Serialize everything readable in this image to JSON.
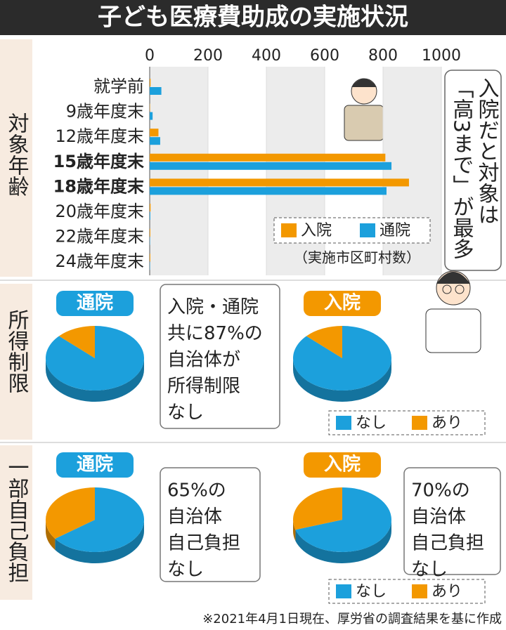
{
  "title": "子ども医療費助成の実施状況",
  "sections": [
    "対象年齢",
    "所得制限",
    "一部自己負担"
  ],
  "chart_data": [
    {
      "type": "hbar",
      "categories": [
        "就学前",
        "9歳年度末",
        "12歳年度末",
        "15歳年度末",
        "18歳年度末",
        "20歳年度末",
        "22歳年度末",
        "24歳年度末"
      ],
      "series": [
        {
          "name": "入院",
          "color": "#f39800",
          "values": [
            3,
            1,
            30,
            808,
            889,
            3,
            2,
            2
          ]
        },
        {
          "name": "通院",
          "color": "#1ca0dc",
          "values": [
            40,
            10,
            36,
            829,
            812,
            2,
            1,
            1
          ]
        }
      ],
      "xlim": [
        0,
        1000
      ],
      "xticks": [
        0,
        200,
        400,
        600,
        800,
        1000
      ],
      "unit": "（実施市区町村数）",
      "annotation": [
        "入院だと対象は",
        "「高3まで」が最多"
      ]
    },
    {
      "type": "pie",
      "title": "通院",
      "categories": [
        "なし",
        "あり"
      ],
      "values": [
        87,
        13
      ],
      "colors": [
        "#1ca0dc",
        "#f39800"
      ]
    },
    {
      "type": "pie",
      "title": "入院",
      "categories": [
        "なし",
        "あり"
      ],
      "values": [
        87,
        13
      ],
      "colors": [
        "#1ca0dc",
        "#f39800"
      ]
    },
    {
      "type": "pie",
      "title": "通院",
      "categories": [
        "なし",
        "あり"
      ],
      "values": [
        65,
        35
      ],
      "colors": [
        "#1ca0dc",
        "#f39800"
      ]
    },
    {
      "type": "pie",
      "title": "入院",
      "categories": [
        "なし",
        "あり"
      ],
      "values": [
        70,
        30
      ],
      "colors": [
        "#1ca0dc",
        "#f39800"
      ]
    }
  ],
  "notes": [
    [
      "入院・通院",
      "共に87%の",
      "自治体が",
      "所得制限",
      "なし"
    ],
    [
      "65%の",
      "自治体",
      "自己負担",
      "なし"
    ],
    [
      "70%の",
      "自治体",
      "自己負担",
      "なし"
    ]
  ],
  "footer": "※2021年4月1日現在、厚労省の調査結果を基に作成"
}
